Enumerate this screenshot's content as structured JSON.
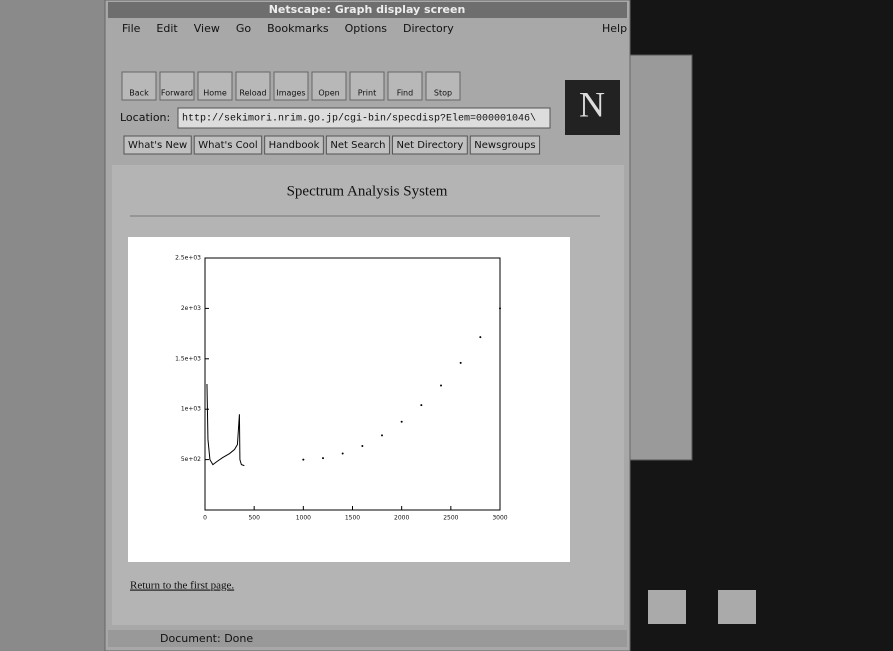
{
  "window": {
    "title": "Netscape: Graph display screen"
  },
  "menu": [
    "File",
    "Edit",
    "View",
    "Go",
    "Bookmarks",
    "Options",
    "Directory"
  ],
  "help": "Help",
  "toolbar": [
    "Back",
    "Forward",
    "Home",
    "Reload",
    "Images",
    "Open",
    "Print",
    "Find",
    "Stop"
  ],
  "location": {
    "label": "Location:",
    "url": "http://sekimori.nrim.go.jp/cgi-bin/specdisp?Elem=000001046\\"
  },
  "directory_buttons": [
    "What's New",
    "What's Cool",
    "Handbook",
    "Net Search",
    "Net Directory",
    "Newsgroups"
  ],
  "page": {
    "heading": "Spectrum Analysis System",
    "link": "Return to the first page."
  },
  "chart_data": {
    "type": "line",
    "x": [
      20,
      30,
      50,
      80,
      120,
      180,
      250,
      300,
      330,
      350,
      355,
      370,
      400,
      1000,
      1200,
      1400,
      1600,
      1800,
      2000,
      2200,
      2400,
      2600,
      2800,
      3000
    ],
    "series": [
      {
        "color": "#000000",
        "style": "line",
        "values": [
          1250,
          700,
          500,
          450,
          480,
          520,
          560,
          600,
          650,
          950,
          500,
          450,
          440,
          null,
          null,
          null,
          null,
          null,
          null,
          null,
          null,
          null,
          null,
          null
        ]
      },
      {
        "color": "#000000",
        "style": "dots",
        "values": [
          null,
          null,
          null,
          null,
          null,
          null,
          null,
          null,
          null,
          null,
          null,
          null,
          null,
          500,
          515,
          560,
          635,
          740,
          875,
          1040,
          1235,
          1460,
          1715,
          2000
        ]
      }
    ],
    "xlim": [
      0,
      3000
    ],
    "xticks": [
      0,
      500,
      1000,
      1500,
      2000,
      2500,
      3000
    ],
    "ylim": [
      0,
      2500
    ],
    "yticks": [
      {
        "value": 500,
        "label": "5e+02"
      },
      {
        "value": 1000,
        "label": "1e+03"
      },
      {
        "value": 1500,
        "label": "1.5e+03"
      },
      {
        "value": 2000,
        "label": "2e+03"
      },
      {
        "value": 2500,
        "label": "2.5e+03"
      }
    ]
  },
  "status": "Document: Done"
}
